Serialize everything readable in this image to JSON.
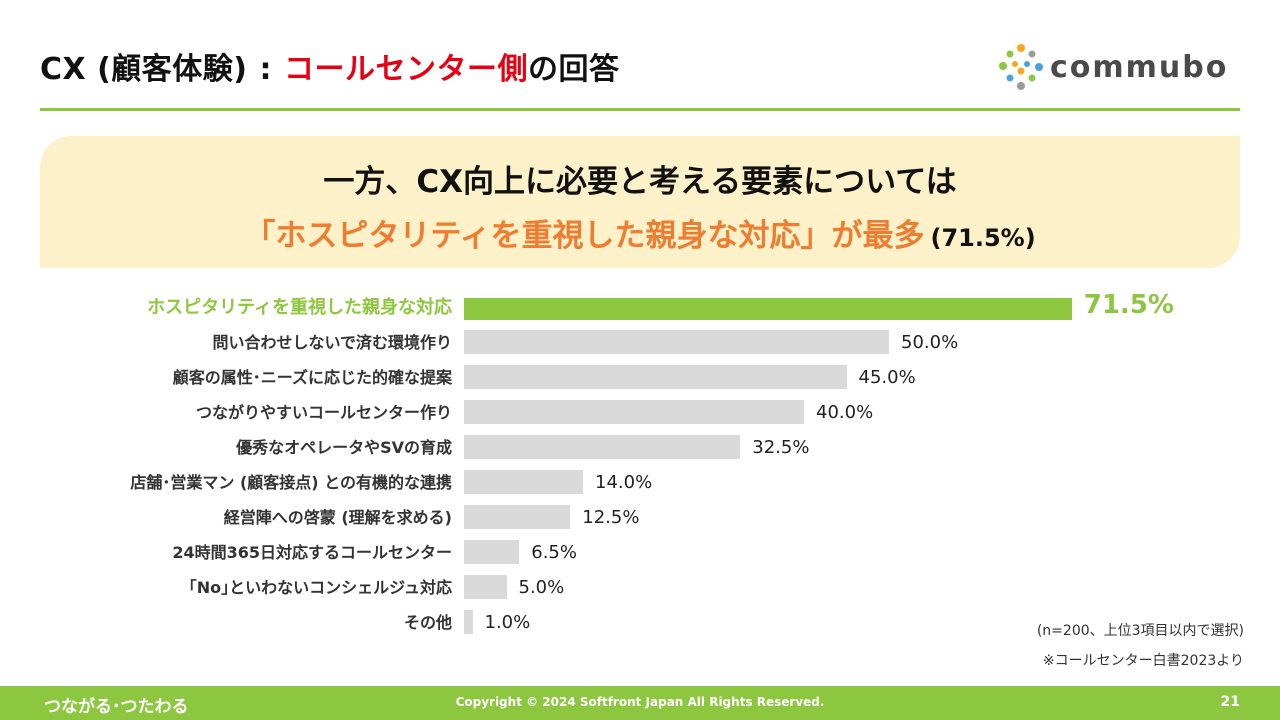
{
  "header": {
    "title_prefix": "CX (顧客体験)",
    "title_sep": ":",
    "title_accent": "コールセンター側",
    "title_suffix": "の回答",
    "logo_text": "commubo",
    "accent_color": "#e60012"
  },
  "banner": {
    "line1": "一方、CX向上に必要と考える要素については",
    "line2": "「ホスピタリティを重視した親身な対応」が最多",
    "line2_pct": "(71.5%)"
  },
  "chart_data": {
    "type": "bar",
    "orientation": "horizontal",
    "xlim": [
      0,
      100
    ],
    "highlight_color": "#8dc63f",
    "bar_color": "#d9d9d9",
    "categories": [
      "ホスピタリティを重視した親身な対応",
      "問い合わせしないで済む環境作り",
      "顧客の属性･ニーズに応じた的確な提案",
      "つながりやすいコールセンター作り",
      "優秀なオペレータやSVの育成",
      "店舗･営業マン (顧客接点) との有機的な連携",
      "経営陣への啓蒙 (理解を求める)",
      "24時間365日対応するコールセンター",
      "｢No｣といわないコンシェルジュ対応",
      "その他"
    ],
    "values": [
      71.5,
      50.0,
      45.0,
      40.0,
      32.5,
      14.0,
      12.5,
      6.5,
      5.0,
      1.0
    ],
    "value_labels": [
      "71.5%",
      "50.0%",
      "45.0%",
      "40.0%",
      "32.5%",
      "14.0%",
      "12.5%",
      "6.5%",
      "5.0%",
      "1.0%"
    ]
  },
  "notes": {
    "sample": "(n=200、上位3項目以内で選択)",
    "source": "※コールセンター白書2023より"
  },
  "footer": {
    "left": "つながる･つたわる",
    "center": "Copyright © 2024 Softfront Japan All Rights Reserved.",
    "page": "21"
  }
}
